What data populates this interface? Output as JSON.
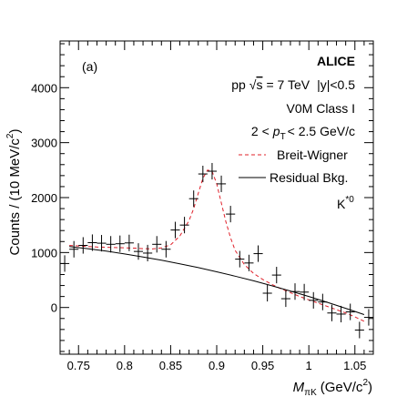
{
  "panel_label": "(a)",
  "info": {
    "experiment": "ALICE",
    "system_prefix": "pp",
    "sqrt_s": "s",
    "energy": "= 7 TeV",
    "rapidity": "|y|<0.5",
    "multiplicity_class": "V0M Class I",
    "pt_range_prefix": "2 <",
    "pt_symbol": "p",
    "pt_subscript": "T",
    "pt_range_suffix": "< 2.5 GeV/c",
    "particle_base": "K",
    "particle_superscript": "*0"
  },
  "chart_data": {
    "type": "scatter",
    "xlabel_main": "M",
    "xlabel_sub": "πK",
    "xlabel_unit": "(GeV/c",
    "xlabel_unit_sup": "2",
    "xlabel_unit_close": ")",
    "ylabel": "Counts / (10 MeV/c",
    "ylabel_sup": "2",
    "ylabel_close": ")",
    "xlim": [
      0.73,
      1.07
    ],
    "ylim": [
      -850,
      4850
    ],
    "xticks": [
      0.75,
      0.8,
      0.85,
      0.9,
      0.95,
      1.0,
      1.05
    ],
    "xtick_labels": [
      "0.75",
      "0.8",
      "0.85",
      "0.9",
      "0.95",
      "1",
      "1.05"
    ],
    "yticks": [
      0,
      1000,
      2000,
      3000,
      4000
    ],
    "ytick_labels": [
      "0",
      "1000",
      "2000",
      "3000",
      "4000"
    ],
    "grid": false,
    "legend_position": "top-right",
    "series": [
      {
        "name": "Data",
        "style": "points-with-errors",
        "color": "#000000",
        "x": [
          0.735,
          0.745,
          0.755,
          0.765,
          0.775,
          0.785,
          0.795,
          0.805,
          0.815,
          0.825,
          0.835,
          0.845,
          0.855,
          0.865,
          0.875,
          0.885,
          0.895,
          0.905,
          0.915,
          0.925,
          0.935,
          0.945,
          0.955,
          0.965,
          0.975,
          0.985,
          0.995,
          1.005,
          1.015,
          1.025,
          1.035,
          1.045,
          1.055,
          1.065
        ],
        "y": [
          800,
          1060,
          1130,
          1180,
          1170,
          1150,
          1160,
          1175,
          1020,
          990,
          1150,
          1060,
          1410,
          1500,
          1980,
          2430,
          2480,
          2250,
          1700,
          880,
          810,
          980,
          260,
          590,
          160,
          290,
          280,
          130,
          100,
          -100,
          -120,
          -80,
          -410,
          -180
        ],
        "yerr": [
          150,
          150,
          150,
          150,
          150,
          150,
          150,
          150,
          150,
          150,
          150,
          150,
          150,
          150,
          150,
          150,
          150,
          150,
          150,
          150,
          150,
          150,
          150,
          150,
          150,
          150,
          150,
          150,
          150,
          150,
          150,
          150,
          150,
          150
        ]
      },
      {
        "name": "Breit-Wigner",
        "style": "dashed-line",
        "color": "#e0202a",
        "x": [
          0.74,
          0.75,
          0.76,
          0.77,
          0.78,
          0.79,
          0.8,
          0.81,
          0.82,
          0.83,
          0.84,
          0.85,
          0.86,
          0.87,
          0.875,
          0.88,
          0.885,
          0.89,
          0.895,
          0.9,
          0.905,
          0.91,
          0.915,
          0.92,
          0.93,
          0.94,
          0.95,
          0.96,
          0.97,
          0.98,
          0.99,
          1.0,
          1.01,
          1.02,
          1.03,
          1.04,
          1.05,
          1.06
        ],
        "y": [
          1130,
          1120,
          1110,
          1100,
          1095,
          1090,
          1085,
          1080,
          1070,
          1065,
          1085,
          1140,
          1300,
          1580,
          1800,
          2080,
          2350,
          2500,
          2480,
          2250,
          1900,
          1560,
          1270,
          1040,
          780,
          620,
          510,
          420,
          340,
          270,
          200,
          140,
          80,
          20,
          -40,
          -100,
          -170,
          -250
        ]
      },
      {
        "name": "Residual Bkg.",
        "style": "solid-line",
        "color": "#000000",
        "x": [
          0.74,
          0.76,
          0.78,
          0.8,
          0.82,
          0.84,
          0.86,
          0.88,
          0.9,
          0.92,
          0.94,
          0.96,
          0.98,
          1.0,
          1.02,
          1.04,
          1.06
        ],
        "y": [
          1110,
          1070,
          1025,
          975,
          920,
          860,
          795,
          725,
          650,
          570,
          485,
          395,
          300,
          200,
          95,
          -15,
          -130
        ]
      }
    ]
  }
}
